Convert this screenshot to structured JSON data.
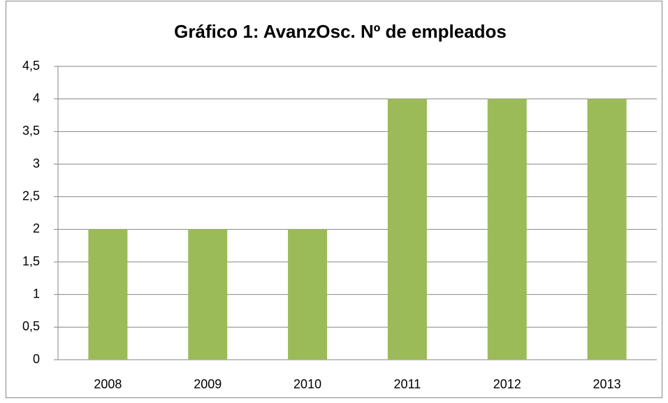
{
  "chart_data": {
    "type": "bar",
    "title": "Gráfico 1: AvanzOsc. Nº de empleados",
    "categories": [
      "2008",
      "2009",
      "2010",
      "2011",
      "2012",
      "2013"
    ],
    "values": [
      2,
      2,
      2,
      4,
      4,
      4
    ],
    "color": "#9bbb59",
    "ylim": [
      0,
      4.5
    ],
    "yticks": [
      0,
      {
        "value": 0.5,
        "label": "0,5"
      },
      1,
      {
        "value": 1.5,
        "label": "1,5"
      },
      2,
      {
        "value": 2.5,
        "label": "2,5"
      },
      3,
      {
        "value": 3.5,
        "label": "3,5"
      },
      4,
      {
        "value": 4.5,
        "label": "4,5"
      }
    ],
    "grid": true
  }
}
